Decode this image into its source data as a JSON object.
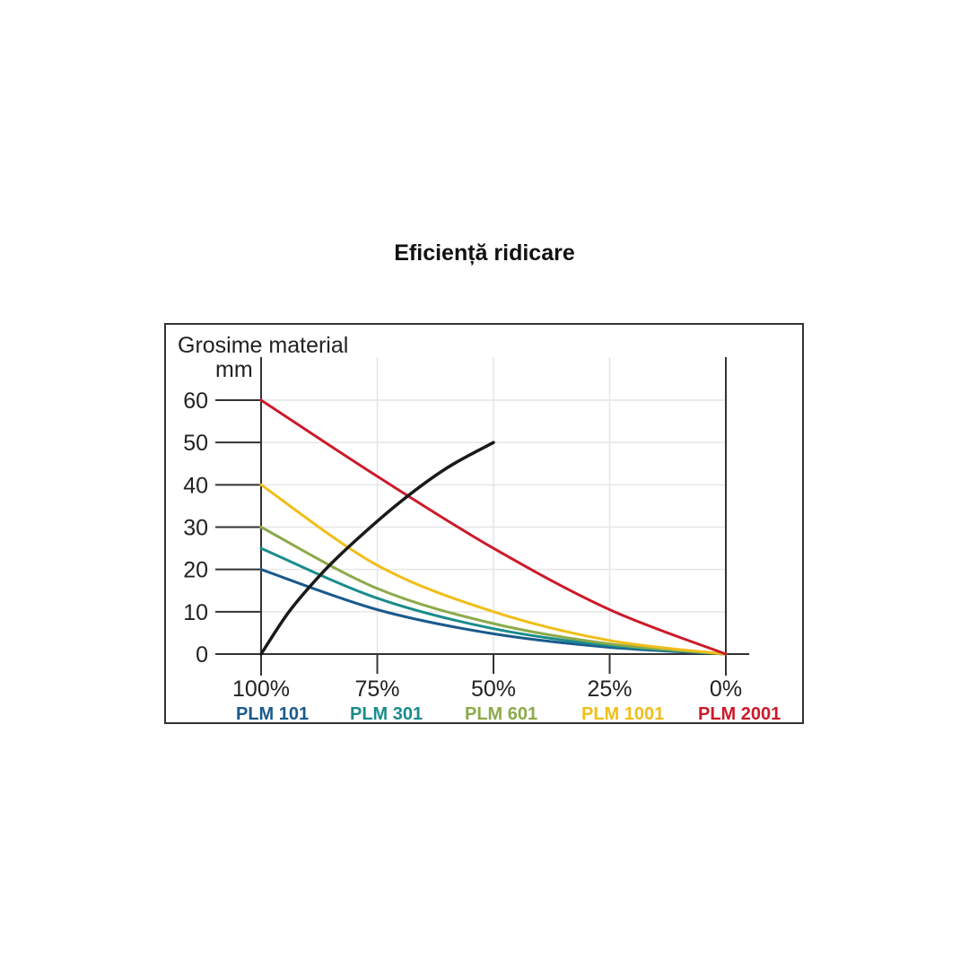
{
  "chart_data": {
    "type": "line",
    "title": "Eficiență ridicare",
    "ylabel_line1": "Grosime material",
    "ylabel_line2": "mm",
    "xlabel": "",
    "yticks": [
      "0",
      "10",
      "20",
      "30",
      "40",
      "50",
      "60"
    ],
    "xticks": [
      "100%",
      "75%",
      "50%",
      "25%",
      "0%"
    ],
    "x_categories": [
      100,
      75,
      50,
      25,
      0
    ],
    "ylim": [
      0,
      60
    ],
    "xlim": [
      100,
      0
    ],
    "grid": true,
    "legend_placement": "bottom",
    "series": [
      {
        "name": "PLM 101",
        "color": "#1a5a8c",
        "x": [
          100,
          75,
          50,
          25,
          0
        ],
        "y": [
          20,
          10.5,
          4.8,
          1.6,
          0
        ]
      },
      {
        "name": "PLM 301",
        "color": "#1a8c8c",
        "x": [
          100,
          75,
          50,
          25,
          0
        ],
        "y": [
          25,
          13.2,
          6,
          2,
          0
        ]
      },
      {
        "name": "PLM 601",
        "color": "#8caa4a",
        "x": [
          100,
          75,
          50,
          25,
          0
        ],
        "y": [
          30,
          15.5,
          7.2,
          2.4,
          0
        ]
      },
      {
        "name": "PLM 1001",
        "color": "#f0be1a",
        "x": [
          100,
          75,
          50,
          25,
          0
        ],
        "y": [
          40,
          21,
          10,
          3.2,
          0
        ]
      },
      {
        "name": "PLM 2001",
        "color": "#cc1a2a",
        "x": [
          100,
          75,
          50,
          25,
          0
        ],
        "y": [
          60,
          42,
          25,
          10.5,
          0
        ]
      }
    ],
    "boundary_curve": {
      "color": "#1a1a1a",
      "x": [
        100,
        94,
        87,
        80,
        70,
        60,
        50
      ],
      "y": [
        0,
        10,
        19,
        26.5,
        36,
        44,
        50
      ]
    }
  }
}
